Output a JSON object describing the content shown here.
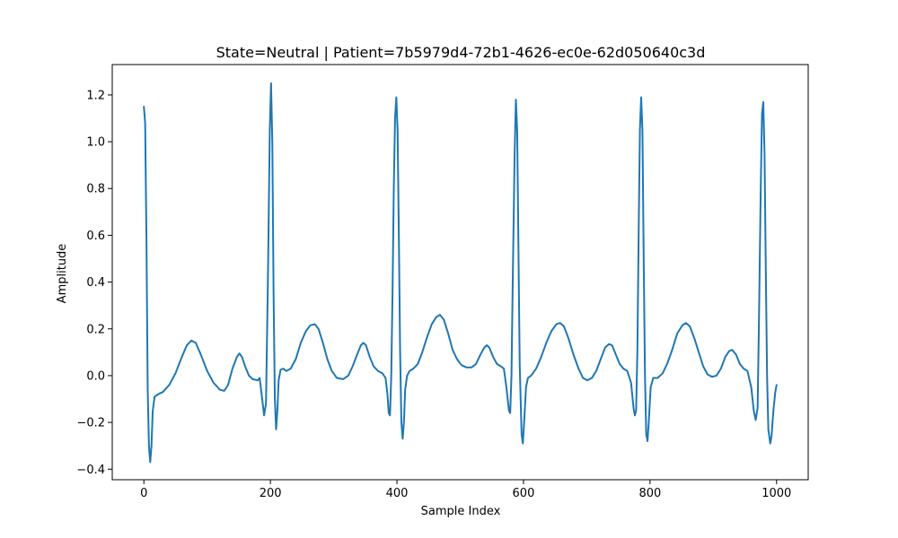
{
  "chart_data": {
    "type": "line",
    "title": "State=Neutral | Patient=7b5979d4-72b1-4626-ec0e-62d050640c3d",
    "xlabel": "Sample Index",
    "ylabel": "Amplitude",
    "xlim": [
      -50,
      1050
    ],
    "ylim": [
      -0.445,
      1.33
    ],
    "grid": false,
    "xticks": [
      0,
      200,
      400,
      600,
      800,
      1000
    ],
    "yticks": [
      -0.4,
      -0.2,
      0.0,
      0.2,
      0.4,
      0.6,
      0.8,
      1.0,
      1.2
    ],
    "xtick_labels": [
      "0",
      "200",
      "400",
      "600",
      "800",
      "1000"
    ],
    "ytick_labels": [
      "−0.4",
      "−0.2",
      "0.0",
      "0.2",
      "0.4",
      "0.6",
      "0.8",
      "1.0",
      "1.2"
    ],
    "series": [
      {
        "color": "#1f77b4",
        "points": [
          [
            0,
            1.15
          ],
          [
            2,
            1.08
          ],
          [
            4,
            0.6
          ],
          [
            6,
            -0.05
          ],
          [
            8,
            -0.3
          ],
          [
            10,
            -0.37
          ],
          [
            12,
            -0.3
          ],
          [
            14,
            -0.15
          ],
          [
            17,
            -0.09
          ],
          [
            22,
            -0.08
          ],
          [
            30,
            -0.07
          ],
          [
            40,
            -0.04
          ],
          [
            50,
            0.01
          ],
          [
            60,
            0.08
          ],
          [
            68,
            0.13
          ],
          [
            75,
            0.15
          ],
          [
            82,
            0.14
          ],
          [
            90,
            0.09
          ],
          [
            100,
            0.02
          ],
          [
            110,
            -0.03
          ],
          [
            120,
            -0.06
          ],
          [
            127,
            -0.065
          ],
          [
            133,
            -0.04
          ],
          [
            140,
            0.03
          ],
          [
            147,
            0.08
          ],
          [
            151,
            0.095
          ],
          [
            155,
            0.08
          ],
          [
            160,
            0.04
          ],
          [
            166,
            0.0
          ],
          [
            172,
            -0.015
          ],
          [
            180,
            -0.02
          ],
          [
            183,
            -0.01
          ],
          [
            187,
            -0.1
          ],
          [
            190,
            -0.17
          ],
          [
            193,
            -0.12
          ],
          [
            196,
            0.4
          ],
          [
            199,
            1.05
          ],
          [
            201,
            1.25
          ],
          [
            203,
            1.0
          ],
          [
            205,
            0.35
          ],
          [
            207,
            -0.1
          ],
          [
            209,
            -0.23
          ],
          [
            211,
            -0.15
          ],
          [
            213,
            -0.02
          ],
          [
            216,
            0.025
          ],
          [
            220,
            0.03
          ],
          [
            225,
            0.02
          ],
          [
            232,
            0.03
          ],
          [
            240,
            0.07
          ],
          [
            248,
            0.14
          ],
          [
            256,
            0.19
          ],
          [
            263,
            0.215
          ],
          [
            270,
            0.22
          ],
          [
            276,
            0.2
          ],
          [
            283,
            0.14
          ],
          [
            290,
            0.07
          ],
          [
            297,
            0.02
          ],
          [
            305,
            -0.01
          ],
          [
            315,
            -0.015
          ],
          [
            323,
            0.0
          ],
          [
            330,
            0.04
          ],
          [
            337,
            0.09
          ],
          [
            343,
            0.13
          ],
          [
            347,
            0.14
          ],
          [
            351,
            0.13
          ],
          [
            357,
            0.08
          ],
          [
            363,
            0.04
          ],
          [
            370,
            0.02
          ],
          [
            377,
            0.01
          ],
          [
            382,
            -0.01
          ],
          [
            385,
            -0.08
          ],
          [
            387,
            -0.16
          ],
          [
            389,
            -0.17
          ],
          [
            391,
            0.0
          ],
          [
            393,
            0.35
          ],
          [
            395,
            0.8
          ],
          [
            397,
            1.1
          ],
          [
            399,
            1.19
          ],
          [
            401,
            1.05
          ],
          [
            403,
            0.6
          ],
          [
            405,
            0.1
          ],
          [
            407,
            -0.2
          ],
          [
            409,
            -0.27
          ],
          [
            411,
            -0.2
          ],
          [
            413,
            -0.06
          ],
          [
            416,
            0.0
          ],
          [
            420,
            0.02
          ],
          [
            426,
            0.03
          ],
          [
            433,
            0.05
          ],
          [
            440,
            0.1
          ],
          [
            447,
            0.16
          ],
          [
            455,
            0.22
          ],
          [
            462,
            0.25
          ],
          [
            468,
            0.26
          ],
          [
            474,
            0.24
          ],
          [
            481,
            0.18
          ],
          [
            488,
            0.11
          ],
          [
            495,
            0.07
          ],
          [
            502,
            0.045
          ],
          [
            510,
            0.035
          ],
          [
            518,
            0.035
          ],
          [
            525,
            0.05
          ],
          [
            532,
            0.09
          ],
          [
            538,
            0.12
          ],
          [
            542,
            0.13
          ],
          [
            546,
            0.12
          ],
          [
            552,
            0.08
          ],
          [
            558,
            0.05
          ],
          [
            564,
            0.04
          ],
          [
            569,
            0.03
          ],
          [
            573,
            -0.05
          ],
          [
            577,
            -0.15
          ],
          [
            579,
            -0.16
          ],
          [
            581,
            0.0
          ],
          [
            583,
            0.4
          ],
          [
            586,
            0.95
          ],
          [
            588,
            1.18
          ],
          [
            590,
            1.05
          ],
          [
            592,
            0.55
          ],
          [
            594,
            0.05
          ],
          [
            597,
            -0.25
          ],
          [
            599,
            -0.29
          ],
          [
            601,
            -0.2
          ],
          [
            604,
            -0.05
          ],
          [
            607,
            -0.01
          ],
          [
            612,
            0.0
          ],
          [
            620,
            0.03
          ],
          [
            628,
            0.08
          ],
          [
            636,
            0.14
          ],
          [
            644,
            0.19
          ],
          [
            652,
            0.22
          ],
          [
            658,
            0.225
          ],
          [
            664,
            0.21
          ],
          [
            671,
            0.16
          ],
          [
            679,
            0.09
          ],
          [
            687,
            0.03
          ],
          [
            694,
            -0.01
          ],
          [
            701,
            -0.02
          ],
          [
            708,
            -0.01
          ],
          [
            715,
            0.02
          ],
          [
            722,
            0.07
          ],
          [
            729,
            0.12
          ],
          [
            735,
            0.135
          ],
          [
            740,
            0.13
          ],
          [
            746,
            0.09
          ],
          [
            752,
            0.05
          ],
          [
            758,
            0.03
          ],
          [
            764,
            0.02
          ],
          [
            770,
            -0.03
          ],
          [
            774,
            -0.14
          ],
          [
            776,
            -0.17
          ],
          [
            778,
            -0.15
          ],
          [
            780,
            0.1
          ],
          [
            782,
            0.6
          ],
          [
            784,
            1.05
          ],
          [
            786,
            1.19
          ],
          [
            788,
            1.05
          ],
          [
            790,
            0.5
          ],
          [
            792,
            0.0
          ],
          [
            794,
            -0.25
          ],
          [
            796,
            -0.28
          ],
          [
            798,
            -0.2
          ],
          [
            801,
            -0.05
          ],
          [
            805,
            -0.01
          ],
          [
            812,
            -0.01
          ],
          [
            820,
            0.01
          ],
          [
            827,
            0.05
          ],
          [
            835,
            0.11
          ],
          [
            843,
            0.18
          ],
          [
            851,
            0.215
          ],
          [
            857,
            0.225
          ],
          [
            863,
            0.21
          ],
          [
            870,
            0.16
          ],
          [
            877,
            0.1
          ],
          [
            884,
            0.04
          ],
          [
            891,
            0.005
          ],
          [
            898,
            -0.005
          ],
          [
            905,
            0.0
          ],
          [
            912,
            0.03
          ],
          [
            919,
            0.08
          ],
          [
            925,
            0.105
          ],
          [
            930,
            0.11
          ],
          [
            936,
            0.09
          ],
          [
            942,
            0.05
          ],
          [
            948,
            0.03
          ],
          [
            954,
            0.02
          ],
          [
            960,
            -0.05
          ],
          [
            964,
            -0.15
          ],
          [
            967,
            -0.19
          ],
          [
            970,
            -0.14
          ],
          [
            972,
            0.2
          ],
          [
            975,
            0.8
          ],
          [
            977,
            1.12
          ],
          [
            979,
            1.17
          ],
          [
            981,
            0.95
          ],
          [
            983,
            0.45
          ],
          [
            985,
            0.0
          ],
          [
            987,
            -0.23
          ],
          [
            990,
            -0.29
          ],
          [
            992,
            -0.26
          ],
          [
            995,
            -0.15
          ],
          [
            998,
            -0.07
          ],
          [
            1000,
            -0.04
          ]
        ]
      }
    ]
  }
}
